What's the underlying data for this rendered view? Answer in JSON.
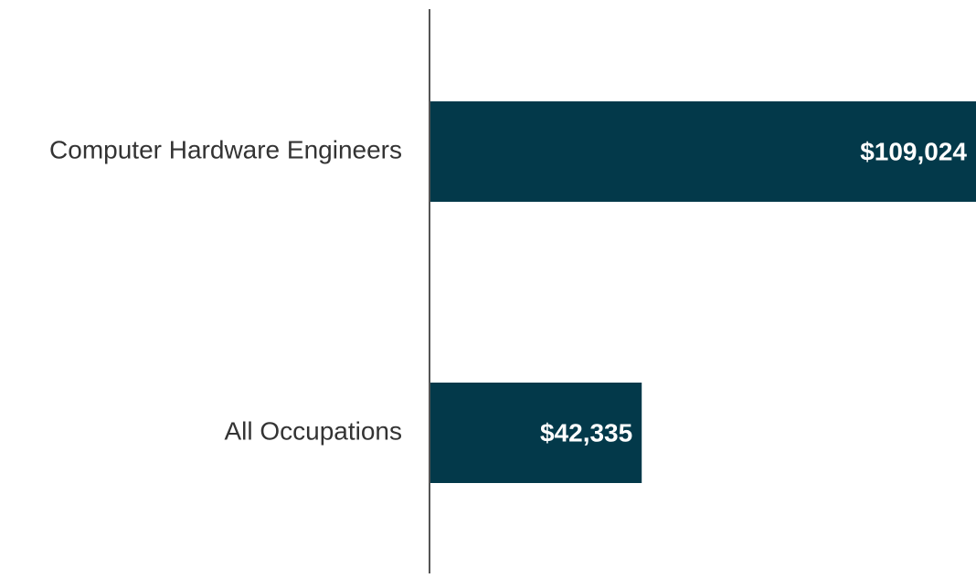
{
  "chart_data": {
    "type": "bar",
    "orientation": "horizontal",
    "categories": [
      "Computer Hardware Engineers",
      "All Occupations"
    ],
    "values": [
      109024,
      42335
    ],
    "value_labels": [
      "$109,024",
      "$42,335"
    ],
    "color": "#03394a",
    "xlim": [
      0,
      109024
    ]
  }
}
